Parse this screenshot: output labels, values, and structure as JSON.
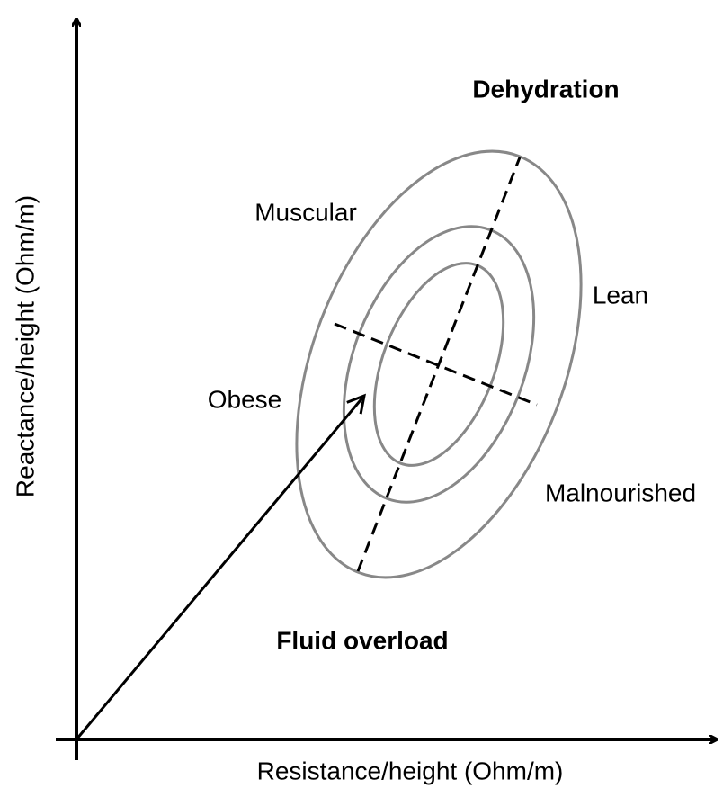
{
  "title": "Dehydration",
  "regions": {
    "top_left": "Muscular",
    "top_right": "Lean",
    "bottom_left": "Obese",
    "bottom_right": "Malnourished",
    "bottom": "Fluid overload"
  },
  "axes": {
    "x_label": "Resistance/height (Ohm/m)",
    "y_label": "Reactance/height (Ohm/m)"
  }
}
